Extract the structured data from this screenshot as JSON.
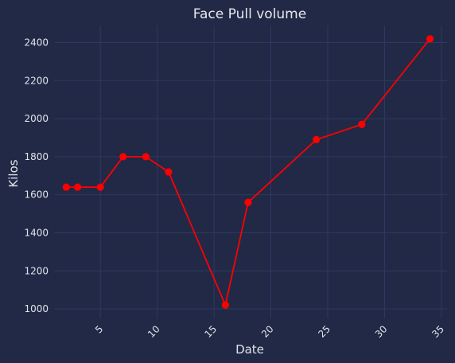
{
  "chart_data": {
    "type": "line",
    "title": "Face Pull volume",
    "xlabel": "Date",
    "ylabel": "Kilos",
    "x": [
      2,
      3,
      5,
      7,
      9,
      11,
      16,
      18,
      24,
      28,
      34
    ],
    "series": [
      {
        "values": [
          1640,
          1640,
          1640,
          1800,
          1800,
          1720,
          1020,
          1560,
          1890,
          1970,
          2420
        ],
        "color": "#ff0000"
      }
    ],
    "xticks": [
      "5",
      "10",
      "15",
      "20",
      "25",
      "30",
      "35"
    ],
    "yticks": [
      "1000",
      "1200",
      "1400",
      "1600",
      "1800",
      "2000",
      "2200",
      "2400"
    ],
    "xlim": [
      1,
      35.5
    ],
    "ylim": [
      950,
      2490
    ],
    "grid": true,
    "background": "#212946",
    "grid_color": "#2d3a63",
    "text_color": "#e0e3ea"
  }
}
